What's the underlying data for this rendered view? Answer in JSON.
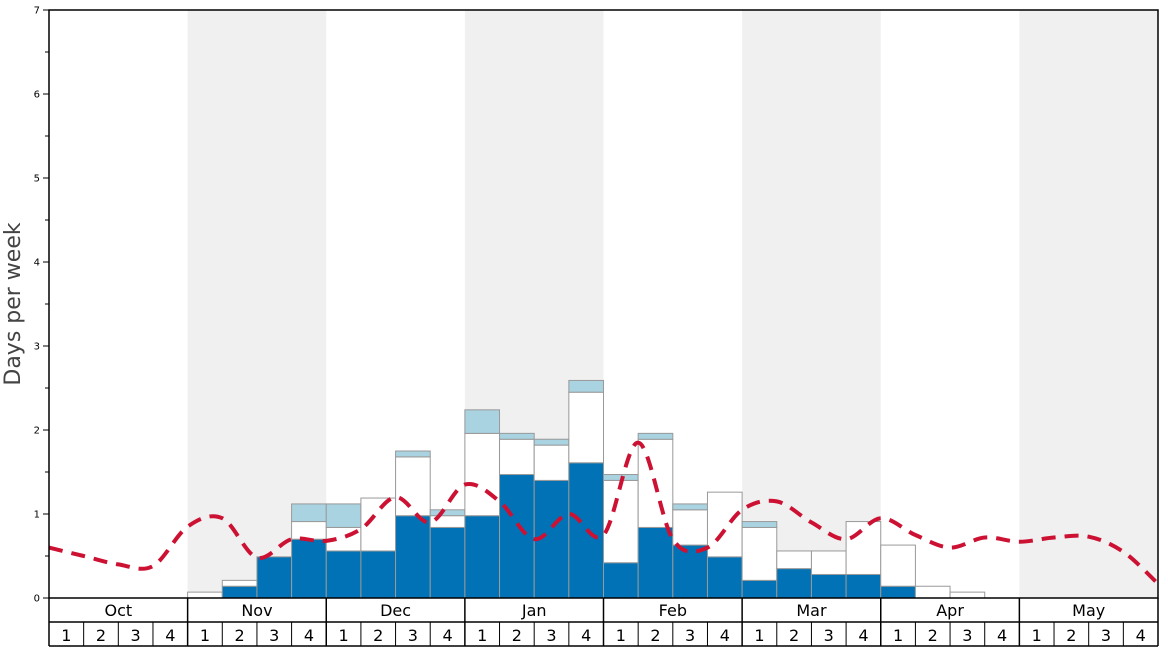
{
  "chart_data": {
    "type": "bar",
    "ylabel": "Days per week",
    "ylim": [
      0,
      7
    ],
    "y_ticks": [
      "0",
      "1",
      "2",
      "3",
      "4",
      "5",
      "6",
      "7"
    ],
    "months": [
      "Oct",
      "Nov",
      "Dec",
      "Jan",
      "Feb",
      "Mar",
      "Apr",
      "May"
    ],
    "week_labels": [
      "1",
      "2",
      "3",
      "4"
    ],
    "shaded_months": [
      "Nov",
      "Jan",
      "Mar",
      "May"
    ],
    "grid": false,
    "colors": {
      "blue": "#0072b5",
      "white": "#ffffff",
      "light_blue": "#a9d3e1",
      "bar_border": "#999999",
      "line": "#cc1133",
      "band": "#f0f0f0",
      "axis": "#000000"
    },
    "series": [
      {
        "type": "bar",
        "color": "blue",
        "values": [
          0,
          0,
          0,
          0,
          0,
          0.14,
          0.49,
          0.7,
          0.56,
          0.56,
          0.98,
          0.84,
          0.98,
          1.47,
          1.4,
          1.61,
          0.42,
          0.84,
          0.63,
          0.49,
          0.21,
          0.35,
          0.28,
          0.28,
          0.14,
          0,
          0,
          0,
          0,
          0,
          0,
          0
        ]
      },
      {
        "type": "bar",
        "color": "white",
        "values": [
          0,
          0,
          0,
          0,
          0.07,
          0.07,
          0,
          0.21,
          0.28,
          0.63,
          0.7,
          0.14,
          0.98,
          0.42,
          0.42,
          0.84,
          0.98,
          1.05,
          0.42,
          0.77,
          0.63,
          0.21,
          0.28,
          0.63,
          0.49,
          0.14,
          0.07,
          0,
          0,
          0,
          0,
          0
        ]
      },
      {
        "type": "bar",
        "color": "light_blue",
        "values": [
          0,
          0,
          0,
          0,
          0,
          0,
          0,
          0.21,
          0.28,
          0,
          0.07,
          0.07,
          0.28,
          0.07,
          0.07,
          0.14,
          0.07,
          0.07,
          0.07,
          0,
          0.07,
          0,
          0,
          0,
          0,
          0,
          0,
          0,
          0,
          0,
          0,
          0
        ]
      },
      {
        "type": "line",
        "style": "dashed",
        "color": "line",
        "values": [
          0.6,
          0.5,
          0.4,
          0.38,
          0.85,
          0.95,
          0.48,
          0.7,
          0.68,
          0.82,
          1.2,
          0.9,
          1.35,
          1.15,
          0.7,
          1.0,
          0.75,
          1.85,
          0.7,
          0.6,
          1.05,
          1.15,
          0.9,
          0.7,
          0.95,
          0.75,
          0.6,
          0.72,
          0.67,
          0.72,
          0.73,
          0.55,
          0.17
        ]
      }
    ]
  }
}
